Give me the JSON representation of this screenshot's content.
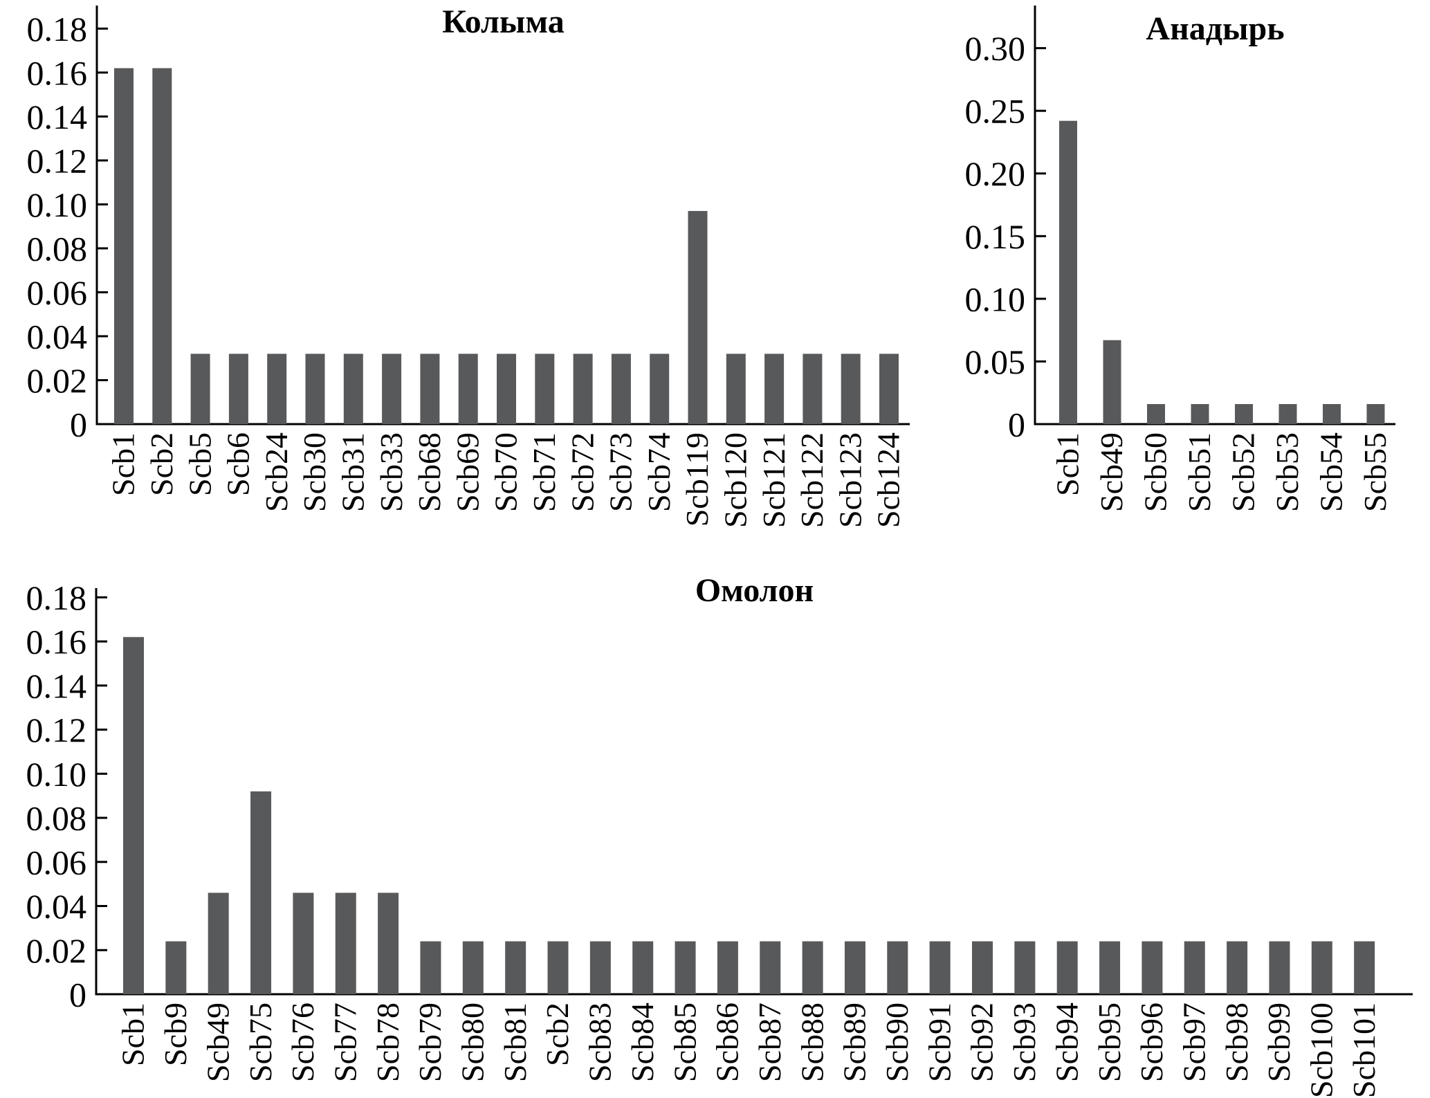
{
  "page": {
    "background": "#ffffff",
    "figure_type": "three bar charts of haplotype frequencies"
  },
  "chart_data": [
    {
      "id": "kolyma",
      "type": "bar",
      "title": "Колыма",
      "categories": [
        "Scb1",
        "Scb2",
        "Scb5",
        "Scb6",
        "Scb24",
        "Scb30",
        "Scb31",
        "Scb33",
        "Scb68",
        "Scb69",
        "Scb70",
        "Scb71",
        "Scb72",
        "Scb73",
        "Scb74",
        "Scb119",
        "Scb120",
        "Scb121",
        "Scb122",
        "Scb123",
        "Scb124"
      ],
      "values": [
        0.162,
        0.162,
        0.032,
        0.032,
        0.032,
        0.032,
        0.032,
        0.032,
        0.032,
        0.032,
        0.032,
        0.032,
        0.032,
        0.032,
        0.032,
        0.097,
        0.032,
        0.032,
        0.032,
        0.032,
        0.032
      ],
      "yticks": [
        0,
        0.02,
        0.04,
        0.06,
        0.08,
        0.1,
        0.12,
        0.14,
        0.16,
        0.18
      ],
      "ytick_labels": [
        "0",
        "0.02",
        "0.04",
        "0.06",
        "0.08",
        "0.10",
        "0.12",
        "0.14",
        "0.16",
        "0.18"
      ],
      "ylim": [
        0,
        0.1905
      ],
      "xlabel": "",
      "ylabel": "",
      "grid": false,
      "legend": "none",
      "bar_color": "#58595B",
      "axis_color": "#000000"
    },
    {
      "id": "anadyr",
      "type": "bar",
      "title": "Анадырь",
      "categories": [
        "Scb1",
        "Scb49",
        "Scb50",
        "Scb51",
        "Scb52",
        "Scb53",
        "Scb54",
        "Scb55"
      ],
      "values": [
        0.242,
        0.067,
        0.016,
        0.016,
        0.016,
        0.016,
        0.016,
        0.016
      ],
      "yticks": [
        0,
        0.05,
        0.1,
        0.15,
        0.2,
        0.25,
        0.3
      ],
      "ytick_labels": [
        "0",
        "0.05",
        "0.10",
        "0.15",
        "0.20",
        "0.25",
        "0.30"
      ],
      "ylim": [
        0,
        0.334
      ],
      "xlabel": "",
      "ylabel": "",
      "grid": false,
      "legend": "none",
      "bar_color": "#58595B",
      "axis_color": "#000000"
    },
    {
      "id": "omolon",
      "type": "bar",
      "title": "Омолон",
      "categories": [
        "Scb1",
        "Scb9",
        "Scb49",
        "Scb75",
        "Scb76",
        "Scb77",
        "Scb78",
        "Scb79",
        "Scb80",
        "Scb81",
        "Scb2",
        "Scb83",
        "Scb84",
        "Scb85",
        "Scb86",
        "Scb87",
        "Scb88",
        "Scb89",
        "Scb90",
        "Scb91",
        "Scb92",
        "Scb93",
        "Scb94",
        "Scb95",
        "Scb96",
        "Scb97",
        "Scb98",
        "Scb99",
        "Scb100",
        "Scb101"
      ],
      "values": [
        0.162,
        0.024,
        0.046,
        0.092,
        0.046,
        0.046,
        0.046,
        0.024,
        0.024,
        0.024,
        0.024,
        0.024,
        0.024,
        0.024,
        0.024,
        0.024,
        0.024,
        0.024,
        0.024,
        0.024,
        0.024,
        0.024,
        0.024,
        0.024,
        0.024,
        0.024,
        0.024,
        0.024,
        0.024,
        0.024
      ],
      "yticks": [
        0,
        0.02,
        0.04,
        0.06,
        0.08,
        0.1,
        0.12,
        0.14,
        0.16,
        0.18
      ],
      "ytick_labels": [
        "0",
        "0.02",
        "0.04",
        "0.06",
        "0.08",
        "0.10",
        "0.12",
        "0.14",
        "0.16",
        "0.18"
      ],
      "ylim": [
        0,
        0.1842
      ],
      "xlabel": "",
      "ylabel": "",
      "grid": false,
      "legend": "none",
      "bar_color": "#58595B",
      "axis_color": "#000000"
    }
  ]
}
